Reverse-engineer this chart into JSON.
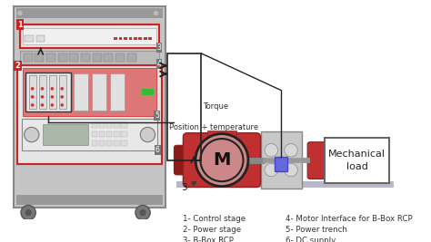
{
  "legend_items": [
    [
      "1- Control stage",
      "4- Motor Interface for B-Box RCP"
    ],
    [
      "2- Power stage",
      "5- Power trench"
    ],
    [
      "3- B-Box RCP",
      "6- DC supply"
    ]
  ],
  "label_position_temperature": "Position + temperature",
  "label_torque": "Torque",
  "label_motor": "M",
  "label_load": "Mechanical\nload",
  "label_3": "3",
  "bg_color": "#ffffff",
  "rack_fill": "#c8c8c8",
  "rack_border": "#888888",
  "rack_inner_dark": "#aaaaaa",
  "red_color": "#cc2222",
  "arrow_color": "#222222",
  "motor_red": "#c03030",
  "motor_dark": "#8b1a1a",
  "gray_mech": "#b0b0b0",
  "label_color": "#333333",
  "figsize": [
    4.74,
    2.67
  ],
  "dpi": 100
}
